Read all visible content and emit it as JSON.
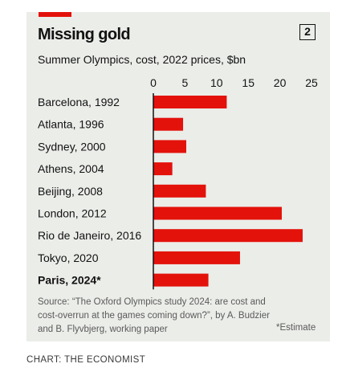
{
  "header": {
    "title": "Missing gold",
    "chart_number": "2",
    "subtitle": "Summer Olympics, cost, 2022 prices, $bn"
  },
  "chart_data": {
    "type": "bar",
    "orientation": "horizontal",
    "categories": [
      "Barcelona, 1992",
      "Atlanta, 1996",
      "Sydney, 2000",
      "Athens, 2004",
      "Beijing, 2008",
      "London, 2012",
      "Rio de Janeiro, 2016",
      "Tokyo, 2020",
      "Paris, 2024*"
    ],
    "values": [
      11.6,
      4.7,
      5.2,
      3.0,
      8.3,
      20.3,
      23.6,
      13.7,
      8.7
    ],
    "highlight_category": "Paris, 2024*",
    "xlim": [
      0,
      25
    ],
    "xticks": [
      0,
      5,
      10,
      15,
      20,
      25
    ],
    "bar_color": "#e3120b",
    "grid": false
  },
  "footer": {
    "source": "Source: “The Oxford Olympics study 2024: are cost and cost-overrun at the games coming down?”, by A. Budzier and B. Flyvbjerg, working paper",
    "note": "*Estimate",
    "credit": "CHART: THE ECONOMIST"
  }
}
